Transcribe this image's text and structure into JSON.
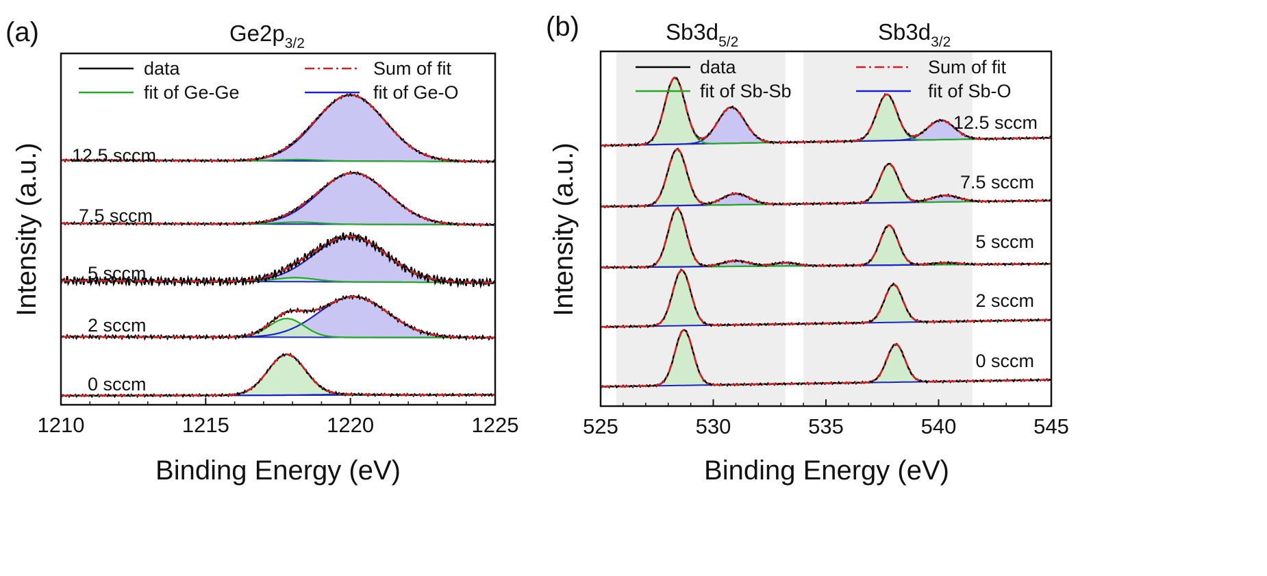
{
  "colors": {
    "data": "#000000",
    "sum_fit": "#d42020",
    "fit_a": "#22aa22",
    "fit_b": "#1a22c8",
    "fill_a": "#ccebc8",
    "fill_b": "#c9c6f4",
    "shade": "#eeeeee"
  },
  "chart_data": [
    {
      "type": "line",
      "panel_label": "(a)",
      "title_main": "Ge2p",
      "title_sub": "3/2",
      "xlabel": "Binding Energy (eV)",
      "ylabel": "Intensity (a.u.)",
      "xlim": [
        1210,
        1225
      ],
      "x_ticks": [
        "1210",
        "1215",
        "1220",
        "1225"
      ],
      "legend": {
        "data": "data",
        "sum": "Sum of fit",
        "fit_a": "fit of Ge-Ge",
        "fit_b": "fit of Ge-O"
      },
      "traces": [
        {
          "label": "12.5 sccm",
          "baseline_start": 0.62,
          "baseline_end": 0.52,
          "peaks_a": [
            {
              "center": 1218.2,
              "height": 0.1,
              "sigma": 0.7
            }
          ],
          "peaks_b": [
            {
              "center": 1220.0,
              "height": 4.95,
              "sigma": 1.2
            }
          ]
        },
        {
          "label": "7.5 sccm",
          "baseline_start": 0.4,
          "baseline_end": 0.3,
          "peaks_a": [
            {
              "center": 1218.2,
              "height": 0.15,
              "sigma": 0.7
            }
          ],
          "peaks_b": [
            {
              "center": 1220.1,
              "height": 3.85,
              "sigma": 1.2
            }
          ]
        },
        {
          "label": "5 sccm",
          "baseline_start": 0.42,
          "baseline_end": 0.28,
          "peaks_a": [
            {
              "center": 1218.1,
              "height": 0.3,
              "sigma": 0.7
            }
          ],
          "peaks_b": [
            {
              "center": 1220.0,
              "height": 3.4,
              "sigma": 1.25
            }
          ]
        },
        {
          "label": "2 sccm",
          "baseline_start": 0.12,
          "baseline_end": 0.05,
          "peaks_a": [
            {
              "center": 1217.8,
              "height": 1.4,
              "sigma": 0.6
            }
          ],
          "peaks_b": [
            {
              "center": 1220.1,
              "height": 3.05,
              "sigma": 1.2
            }
          ]
        },
        {
          "label": "0 sccm",
          "baseline_start": 0.12,
          "baseline_end": 0.18,
          "peaks_a": [
            {
              "center": 1217.8,
              "height": 3.05,
              "sigma": 0.65
            }
          ],
          "peaks_b": [
            {
              "center": 1219.8,
              "height": 0.05,
              "sigma": 1.0
            }
          ]
        }
      ]
    },
    {
      "type": "line",
      "panel_label": "(b)",
      "region_titles": [
        {
          "main": "Sb3d",
          "sub": "5/2"
        },
        {
          "main": "Sb3d",
          "sub": "3/2"
        }
      ],
      "shaded_ranges": [
        [
          525.7,
          533.2
        ],
        [
          534.0,
          541.5
        ]
      ],
      "xlabel": "Binding Energy (eV)",
      "ylabel": "Intensity (a.u.)",
      "xlim": [
        525,
        545
      ],
      "x_ticks": [
        "525",
        "530",
        "535",
        "540",
        "545"
      ],
      "legend": {
        "data": "data",
        "sum": "Sum of fit",
        "fit_a": "fit of Sb-Sb",
        "fit_b": "fit of Sb-O"
      },
      "traces": [
        {
          "label": "12.5 sccm",
          "baseline_start": 0.5,
          "baseline_end": 0.92,
          "peaks_a": [
            {
              "center": 528.3,
              "height": 3.6,
              "sigma": 0.45
            },
            {
              "center": 537.7,
              "height": 2.5,
              "sigma": 0.45
            }
          ],
          "peaks_b": [
            {
              "center": 530.8,
              "height": 1.95,
              "sigma": 0.6
            },
            {
              "center": 540.1,
              "height": 1.05,
              "sigma": 0.6
            }
          ]
        },
        {
          "label": "7.5 sccm",
          "baseline_start": 0.42,
          "baseline_end": 0.75,
          "peaks_a": [
            {
              "center": 528.4,
              "height": 3.05,
              "sigma": 0.42
            },
            {
              "center": 537.8,
              "height": 2.1,
              "sigma": 0.42
            }
          ],
          "peaks_b": [
            {
              "center": 531.0,
              "height": 0.6,
              "sigma": 0.6
            },
            {
              "center": 540.3,
              "height": 0.35,
              "sigma": 0.6
            }
          ]
        },
        {
          "label": "5 sccm",
          "baseline_start": 0.35,
          "baseline_end": 0.55,
          "peaks_a": [
            {
              "center": 528.4,
              "height": 3.15,
              "sigma": 0.4
            },
            {
              "center": 537.8,
              "height": 2.15,
              "sigma": 0.4
            }
          ],
          "peaks_b": [
            {
              "center": 531.0,
              "height": 0.3,
              "sigma": 0.6
            },
            {
              "center": 533.2,
              "height": 0.18,
              "sigma": 0.5
            },
            {
              "center": 540.3,
              "height": 0.1,
              "sigma": 0.6
            }
          ]
        },
        {
          "label": "2 sccm",
          "baseline_start": 0.32,
          "baseline_end": 0.7,
          "peaks_a": [
            {
              "center": 528.6,
              "height": 3.0,
              "sigma": 0.4
            },
            {
              "center": 538.0,
              "height": 2.05,
              "sigma": 0.4
            }
          ],
          "peaks_b": []
        },
        {
          "label": "0 sccm",
          "baseline_start": 0.35,
          "baseline_end": 0.72,
          "peaks_a": [
            {
              "center": 528.7,
              "height": 3.0,
              "sigma": 0.4
            },
            {
              "center": 538.1,
              "height": 2.05,
              "sigma": 0.4
            }
          ],
          "peaks_b": []
        }
      ]
    }
  ]
}
